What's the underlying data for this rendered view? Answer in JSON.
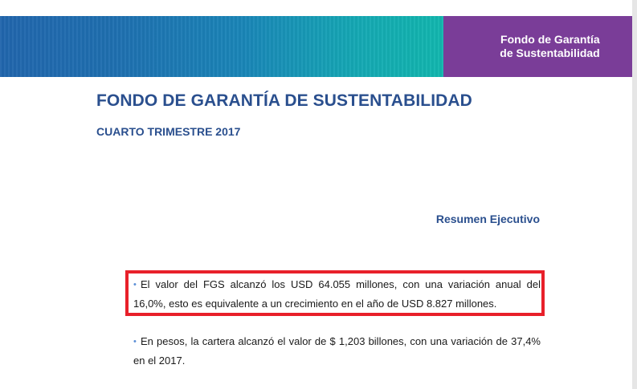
{
  "banner": {
    "logo_line1": "Fondo de Garantía",
    "logo_line2": "de Sustentabilidad"
  },
  "document": {
    "title": "FONDO DE GARANTÍA DE SUSTENTABILIDAD",
    "subtitle": "CUARTO TRIMESTRE 2017",
    "section_heading": "Resumen Ejecutivo",
    "bullet_symbol": "•",
    "bullets": [
      {
        "text": "El valor del FGS alcanzó los USD 64.055 millones, con una variación anual del 16,0%, esto es equivalente a un crecimiento en el año de USD 8.827 millones."
      },
      {
        "text": "En pesos, la cartera alcanzó el valor de $ 1,203 billones, con una variación de 37,4% en el 2017."
      }
    ]
  },
  "colors": {
    "title_blue": "#2a4f8e",
    "banner_purple": "#7a3d98",
    "banner_teal": "#12b7ae",
    "banner_blue": "#2166ad",
    "highlight_red": "#e8202a",
    "bullet_blue": "#5b8fd6"
  }
}
